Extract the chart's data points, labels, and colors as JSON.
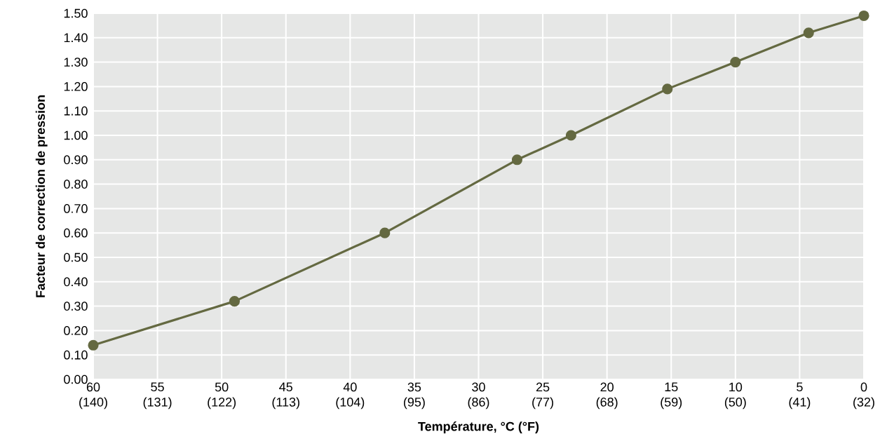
{
  "chart_data": {
    "type": "line",
    "xlabel": "Température, °C (°F)",
    "ylabel": "Facteur de correction de pression",
    "x": [
      60,
      49,
      37.3,
      27,
      22.8,
      15.3,
      10,
      4.3,
      0
    ],
    "series": [
      {
        "color": "#646941",
        "values": [
          0.14,
          0.32,
          0.6,
          0.9,
          1.0,
          1.19,
          1.3,
          1.42,
          1.49
        ]
      }
    ],
    "xlim": [
      60,
      0
    ],
    "xticks": [
      60,
      55,
      50,
      45,
      40,
      35,
      30,
      25,
      20,
      15,
      10,
      5,
      0
    ],
    "x2lim": [
      140,
      32
    ],
    "x2ticks": [
      {
        "value": 140,
        "label": "(140)"
      },
      {
        "value": 131,
        "label": "(131)"
      },
      {
        "value": 122,
        "label": "(122)"
      },
      {
        "value": 113,
        "label": "(113)"
      },
      {
        "value": 104,
        "label": "(104)"
      },
      {
        "value": 95,
        "label": "(95)"
      },
      {
        "value": 86,
        "label": "(86)"
      },
      {
        "value": 77,
        "label": "(77)"
      },
      {
        "value": 68,
        "label": "(68)"
      },
      {
        "value": 59,
        "label": "(59)"
      },
      {
        "value": 50,
        "label": "(50)"
      },
      {
        "value": 41,
        "label": "(41)"
      },
      {
        "value": 32,
        "label": "(32)"
      }
    ],
    "ylim": [
      0,
      1.5
    ],
    "yticks": [
      {
        "value": 0,
        "label": "0.00"
      },
      {
        "value": 0.1,
        "label": "0.10"
      },
      {
        "value": 0.2,
        "label": "0.20"
      },
      {
        "value": 0.3,
        "label": "0.30"
      },
      {
        "value": 0.4,
        "label": "0.40"
      },
      {
        "value": 0.5,
        "label": "0.50"
      },
      {
        "value": 0.6,
        "label": "0.60"
      },
      {
        "value": 0.7,
        "label": "0.70"
      },
      {
        "value": 0.8,
        "label": "0.80"
      },
      {
        "value": 0.9,
        "label": "0.90"
      },
      {
        "value": 1.0,
        "label": "1.00"
      },
      {
        "value": 1.1,
        "label": "1.10"
      },
      {
        "value": 1.2,
        "label": "1.20"
      },
      {
        "value": 1.3,
        "label": "1.30"
      },
      {
        "value": 1.4,
        "label": "1.40"
      },
      {
        "value": 1.5,
        "label": "1.50"
      }
    ],
    "grid": true,
    "marker": "circle",
    "line_style": "solid"
  }
}
